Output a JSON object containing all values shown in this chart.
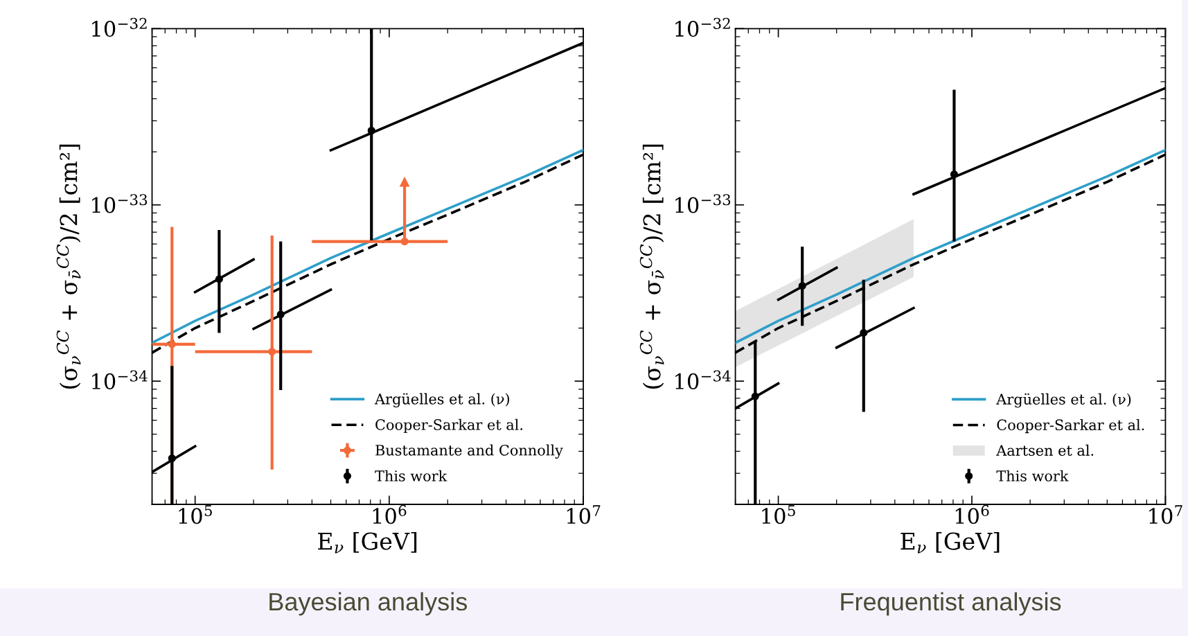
{
  "chart_data": [
    {
      "type": "line",
      "title": "Bayesian analysis",
      "xlabel": "E$_{ν}$ [GeV]",
      "ylabel": "(σ$_{ν}$$^{CC}$ + σ$_{ν̄}$$^{CC}$)/2 [cm²]",
      "log": "xy",
      "xlim": [
        60000,
        10000000
      ],
      "ylim": [
        2e-35,
        1e-32
      ],
      "xticks": [
        {
          "value": 100000,
          "label": "10$^{5}$"
        },
        {
          "value": 1000000,
          "label": "10$^{6}$"
        },
        {
          "value": 10000000,
          "label": "10$^{7}$"
        }
      ],
      "yticks": [
        {
          "value": 1e-34,
          "label": "10$^{−34}$"
        },
        {
          "value": 1e-33,
          "label": "10$^{−33}$"
        },
        {
          "value": 1e-32,
          "label": "10$^{−32}$"
        }
      ],
      "grid": false,
      "legend": "bottom right",
      "series": [
        {
          "name": "Argüelles et al. (ν)",
          "color": "#2e9fc9",
          "line_style": "solid",
          "x": [
            60000,
            100000,
            200000,
            500000,
            1000000,
            2000000,
            5000000,
            10000000
          ],
          "values": [
            1.65e-34,
            2.2e-34,
            3.1e-34,
            5e-34,
            6.9e-34,
            9.5e-34,
            1.45e-33,
            2.05e-33
          ]
        },
        {
          "name": "Cooper-Sarkar et al.",
          "color": "#000000",
          "line_style": "dashed",
          "x": [
            60000,
            100000,
            200000,
            500000,
            1000000,
            2000000,
            5000000,
            10000000
          ],
          "values": [
            1.45e-34,
            2e-34,
            2.85e-34,
            4.6e-34,
            6.4e-34,
            8.8e-34,
            1.35e-33,
            1.93e-33
          ]
        },
        {
          "name": "Bustamante and Connolly",
          "type": "scatter",
          "color": "#f46a3a",
          "marker": "circle",
          "x": [
            76000,
            249000,
            1200000
          ],
          "values": [
            1.62e-34,
            1.47e-34,
            6.2e-34
          ],
          "errors": [
            [
              2e-35,
              7.5e-34
            ],
            [
              3.15e-35,
              6.7e-34
            ],
            [
              6.2e-34,
              1.35e-33
            ]
          ],
          "xerrors": [
            [
              60000,
              100000
            ],
            [
              100000,
              400000
            ],
            [
              400000,
              2000000
            ]
          ]
        },
        {
          "name": "This work",
          "type": "scatter",
          "color": "#000000",
          "marker": "circle",
          "x": [
            76000,
            133000,
            276000,
            810000
          ],
          "values": [
            3.65e-35,
            3.79e-34,
            2.39e-34,
            2.64e-33
          ],
          "errors": [
            [
              2e-35,
              1.22e-34
            ],
            [
              1.88e-34,
              7.2e-34
            ],
            [
              8.9e-35,
              6.2e-34
            ],
            [
              6.3e-34,
              1e-32
            ]
          ]
        },
        {
          "color": "#000000",
          "line_style": "solid",
          "x": [
            60000,
            100000
          ],
          "values": [
            3.05e-35,
            4.27e-35
          ]
        },
        {
          "color": "#000000",
          "line_style": "solid",
          "x": [
            100000,
            200000
          ],
          "values": [
            3.2e-34,
            4.9e-34
          ]
        },
        {
          "color": "#000000",
          "line_style": "solid",
          "x": [
            200000,
            500000
          ],
          "values": [
            1.98e-34,
            3.3e-34
          ]
        },
        {
          "color": "#000000",
          "line_style": "solid",
          "x": [
            500000,
            10000000
          ],
          "values": [
            2.04e-33,
            8.3e-33
          ]
        }
      ]
    },
    {
      "type": "line",
      "title": "Frequentist analysis",
      "xlabel": "E$_{ν}$ [GeV]",
      "ylabel": "(σ$_{ν}$$^{CC}$ + σ$_{ν̄}$$^{CC}$)/2 [cm²]",
      "log": "xy",
      "xlim": [
        60000,
        10000000
      ],
      "ylim": [
        2e-35,
        1e-32
      ],
      "xticks": [
        {
          "value": 100000,
          "label": "10$^{5}$"
        },
        {
          "value": 1000000,
          "label": "10$^{6}$"
        },
        {
          "value": 10000000,
          "label": "10$^{7}$"
        }
      ],
      "yticks": [
        {
          "value": 1e-34,
          "label": "10$^{−34}$"
        },
        {
          "value": 1e-33,
          "label": "10$^{−33}$"
        },
        {
          "value": 1e-32,
          "label": "10$^{−32}$"
        }
      ],
      "grid": false,
      "legend": "bottom right",
      "series": [
        {
          "name": "Argüelles et al. (ν)",
          "color": "#2e9fc9",
          "line_style": "solid",
          "x": [
            60000,
            100000,
            200000,
            500000,
            1000000,
            2000000,
            5000000,
            10000000
          ],
          "values": [
            1.65e-34,
            2.2e-34,
            3.1e-34,
            5e-34,
            6.9e-34,
            9.5e-34,
            1.45e-33,
            2.05e-33
          ]
        },
        {
          "name": "Cooper-Sarkar et al.",
          "color": "#000000",
          "line_style": "dashed",
          "x": [
            60000,
            100000,
            200000,
            500000,
            1000000,
            2000000,
            5000000,
            10000000
          ],
          "values": [
            1.45e-34,
            2e-34,
            2.85e-34,
            4.6e-34,
            6.4e-34,
            8.8e-34,
            1.35e-33,
            1.93e-33
          ]
        },
        {
          "name": "Aartsen et al.",
          "type": "area",
          "color": "#e3e3e3",
          "x": [
            60000,
            500000
          ],
          "values": [
            null,
            null
          ],
          "lower": [
            1.2e-34,
            3.9e-34
          ],
          "upper": [
            2.5e-34,
            8.3e-34
          ]
        },
        {
          "name": "This work",
          "type": "scatter",
          "color": "#000000",
          "marker": "circle",
          "x": [
            76000,
            133000,
            276000,
            810000
          ],
          "values": [
            8.2e-35,
            3.47e-34,
            1.88e-34,
            1.49e-33
          ],
          "errors": [
            [
              2e-35,
              1.67e-34
            ],
            [
              2.06e-34,
              5.8e-34
            ],
            [
              6.7e-35,
              3.76e-34
            ],
            [
              6.2e-34,
              4.5e-33
            ]
          ]
        },
        {
          "color": "#000000",
          "line_style": "solid",
          "x": [
            60000,
            100000
          ],
          "values": [
            7e-35,
            9.7e-35
          ]
        },
        {
          "color": "#000000",
          "line_style": "solid",
          "x": [
            100000,
            200000
          ],
          "values": [
            2.9e-34,
            4.4e-34
          ]
        },
        {
          "color": "#000000",
          "line_style": "solid",
          "x": [
            200000,
            500000
          ],
          "values": [
            1.55e-34,
            2.6e-34
          ]
        },
        {
          "color": "#000000",
          "line_style": "solid",
          "x": [
            500000,
            10000000
          ],
          "values": [
            1.15e-33,
            4.6e-33
          ]
        }
      ]
    }
  ]
}
